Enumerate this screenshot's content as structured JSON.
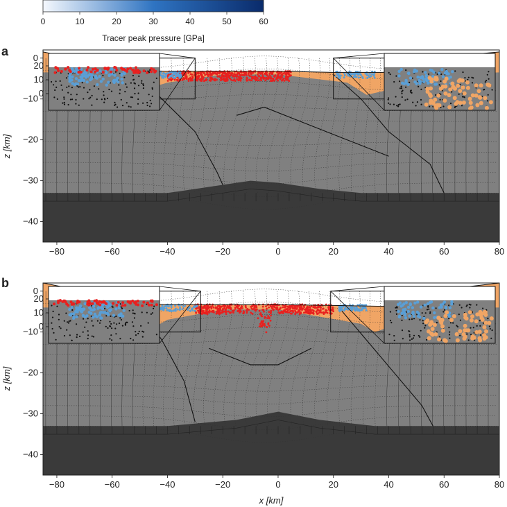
{
  "colorbar": {
    "label": "Tracer peak pressure [GPa]",
    "ticks": [
      0,
      10,
      20,
      30,
      40,
      50,
      60
    ],
    "range": [
      0,
      60
    ],
    "colors": [
      "#f5f8fd",
      "#2f74c2",
      "#0a2b6b"
    ]
  },
  "chart_data": [
    {
      "type": "cross-section",
      "panel_label": "a",
      "xlabel": "",
      "ylabel": "z [km]",
      "xlim": [
        -85,
        80
      ],
      "ylim": [
        -45,
        2
      ],
      "x_ticks": [
        -80,
        -60,
        -40,
        -20,
        0,
        20,
        40,
        60,
        80
      ],
      "y_ticks": [
        0,
        -10,
        -20,
        -30,
        -40
      ],
      "inset_y_ticks": [
        20,
        10,
        0
      ],
      "zoom_boxes_km": [
        {
          "x0": -50,
          "x1": -30,
          "z0": -10,
          "z1": 0
        },
        {
          "x0": 20,
          "x1": 40,
          "z0": -10,
          "z1": 0
        }
      ],
      "layers": {
        "sediment_color": "#f0a565",
        "crust_color": "#808080",
        "mantle_color": "#3a3a3a",
        "moho_depth_km": -33,
        "shocked_melt_color": "#e8201f",
        "shocked_tracer_color": "#5a9fd6"
      }
    },
    {
      "type": "cross-section",
      "panel_label": "b",
      "xlabel": "x [km]",
      "ylabel": "z [km]",
      "xlim": [
        -85,
        80
      ],
      "ylim": [
        -45,
        2
      ],
      "x_ticks": [
        -80,
        -60,
        -40,
        -20,
        0,
        20,
        40,
        60,
        80
      ],
      "y_ticks": [
        0,
        -10,
        -20,
        -30,
        -40
      ],
      "inset_y_ticks": [
        20,
        10,
        0
      ],
      "zoom_boxes_km": [
        {
          "x0": -48,
          "x1": -28,
          "z0": -10,
          "z1": 0
        },
        {
          "x0": 19,
          "x1": 39,
          "z0": -10,
          "z1": 0
        }
      ],
      "layers": {
        "sediment_color": "#f0a565",
        "crust_color": "#808080",
        "mantle_color": "#3a3a3a",
        "moho_depth_km": -33,
        "shocked_melt_color": "#e8201f",
        "shocked_tracer_color": "#5a9fd6"
      }
    }
  ]
}
